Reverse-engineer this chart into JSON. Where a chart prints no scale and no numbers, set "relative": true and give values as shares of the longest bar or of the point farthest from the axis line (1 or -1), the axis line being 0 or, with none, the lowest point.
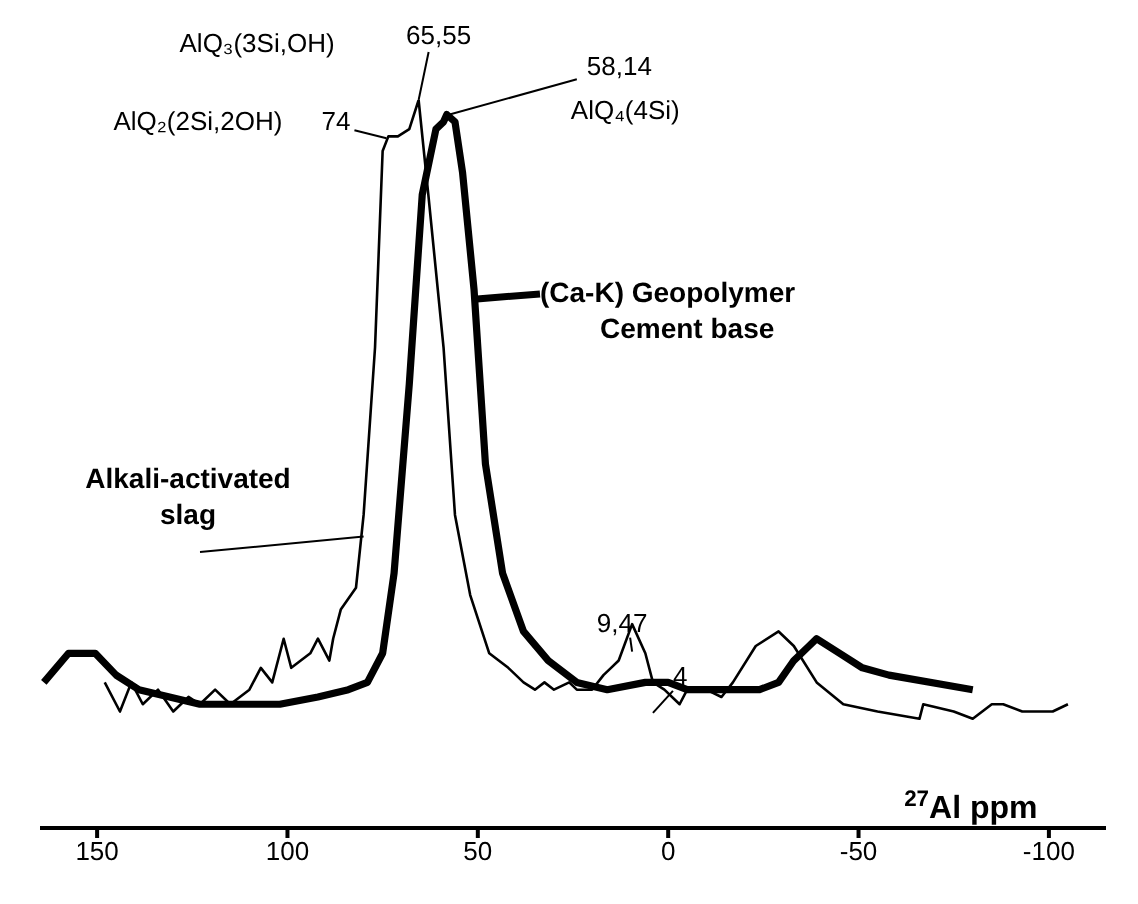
{
  "chart_data": {
    "type": "line",
    "relative": true,
    "xlabel": "$^{27}$Al ppm",
    "xlim": [
      165,
      -115
    ],
    "xticks": [
      150,
      100,
      50,
      0,
      -50,
      -100
    ],
    "marker": "none",
    "line_style": "solid",
    "series": [
      {
        "name": "Alkali-activated slag",
        "color": "#000000",
        "x": [
          148,
          144,
          141,
          138,
          134,
          130,
          126,
          123,
          119,
          115,
          110,
          107,
          104,
          101,
          99,
          94,
          92,
          89,
          88,
          86,
          82,
          80,
          77,
          75,
          73.5,
          71,
          68,
          65.55,
          63,
          59,
          56,
          52,
          47,
          42,
          38,
          35,
          32.5,
          30,
          26,
          24,
          20,
          17,
          15,
          13,
          9.47,
          6,
          4,
          1,
          -3,
          -5,
          -10,
          -14,
          -17,
          -23,
          -29,
          -33,
          -39,
          -46,
          -55,
          -66,
          -67,
          -75,
          -80,
          -85,
          -88,
          -93,
          -101,
          -105
        ],
        "values": [
          0.2,
          0.16,
          0.2,
          0.17,
          0.19,
          0.16,
          0.18,
          0.17,
          0.19,
          0.17,
          0.19,
          0.22,
          0.2,
          0.26,
          0.22,
          0.24,
          0.26,
          0.23,
          0.26,
          0.3,
          0.33,
          0.43,
          0.66,
          0.93,
          0.95,
          0.95,
          0.96,
          1.0,
          0.87,
          0.66,
          0.43,
          0.32,
          0.24,
          0.22,
          0.2,
          0.19,
          0.2,
          0.19,
          0.2,
          0.19,
          0.19,
          0.21,
          0.22,
          0.23,
          0.28,
          0.24,
          0.2,
          0.19,
          0.17,
          0.19,
          0.19,
          0.18,
          0.2,
          0.25,
          0.27,
          0.25,
          0.2,
          0.17,
          0.16,
          0.15,
          0.17,
          0.16,
          0.15,
          0.17,
          0.17,
          0.16,
          0.16,
          0.17
        ]
      },
      {
        "name": "(Ca-K) Geopolymer Cement base",
        "color": "#000000",
        "x": [
          164,
          157.5,
          150.5,
          145,
          139,
          131,
          123,
          113,
          102,
          92,
          84,
          79,
          75,
          72,
          68,
          64.6,
          61,
          59,
          58.14,
          56,
          54,
          51,
          48,
          43.5,
          38,
          31.5,
          24,
          16,
          6,
          0,
          -5,
          -13,
          -24,
          -29,
          -33,
          -37,
          -39,
          -45,
          -51,
          -58,
          -80
        ],
        "values": [
          0.2,
          0.24,
          0.24,
          0.21,
          0.19,
          0.18,
          0.17,
          0.17,
          0.17,
          0.18,
          0.19,
          0.2,
          0.24,
          0.35,
          0.61,
          0.87,
          0.96,
          0.97,
          0.98,
          0.97,
          0.9,
          0.74,
          0.5,
          0.35,
          0.27,
          0.23,
          0.2,
          0.19,
          0.2,
          0.2,
          0.19,
          0.19,
          0.19,
          0.2,
          0.23,
          0.25,
          0.26,
          0.24,
          0.22,
          0.21,
          0.19
        ]
      }
    ],
    "annotations": [
      {
        "text": "74",
        "x": 74,
        "y": 0.95
      },
      "AlQ₂(2Si,2OH)",
      {
        "text": "65,55",
        "x": 65.55,
        "y": 1.0
      },
      "AlQ₃(3Si,OH)",
      {
        "text": "58,14",
        "x": 58.14,
        "y": 0.98
      },
      {
        "text": "AlQ₄(4Si)",
        "x": 58.14,
        "y": 0.98
      },
      {
        "text": "9,47",
        "x": 9.47,
        "y": 0.28
      },
      {
        "text": "4",
        "x": 4,
        "y": 0.2
      }
    ]
  }
}
